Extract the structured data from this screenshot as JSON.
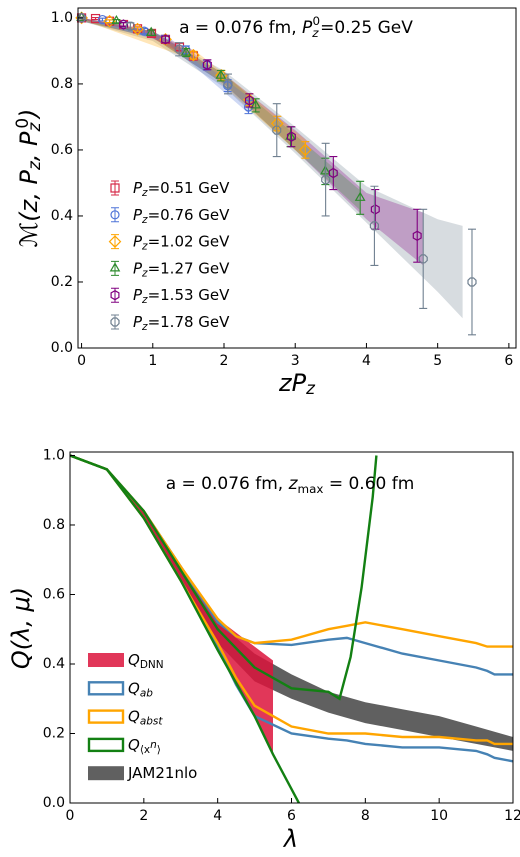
{
  "chart_data": [
    {
      "type": "errorbar",
      "annotation": [
        "a = 0.076 fm, ",
        "P",
        "z",
        "0",
        "=0.25 GeV"
      ],
      "x_label": [
        "zP",
        "z"
      ],
      "y_label": [
        "ℳ(z, P",
        "z",
        ", P",
        "z",
        "0",
        ")"
      ],
      "xlim": [
        -0.05,
        6.1
      ],
      "ylim": [
        0,
        1.03
      ],
      "xticks": [
        0,
        1,
        2,
        3,
        4,
        5,
        6
      ],
      "yticks": [
        {
          "value": 0,
          "label": "0.0"
        },
        {
          "value": 0.2,
          "label": "0.2"
        },
        {
          "value": 0.4,
          "label": "0.4"
        },
        {
          "value": 0.6,
          "label": "0.6"
        },
        {
          "value": 0.8,
          "label": "0.8"
        },
        {
          "value": 1.0,
          "label": "1.0"
        }
      ],
      "series": [
        {
          "name": [
            "P",
            "z",
            "=0.51 GeV"
          ],
          "color": "#d62746",
          "marker": "s",
          "x": [
            0,
            0.196,
            0.393,
            0.589,
            0.786,
            0.982,
            1.178,
            1.375,
            1.571
          ],
          "values": [
            1,
            0.998,
            0.99,
            0.98,
            0.967,
            0.953,
            0.935,
            0.912,
            0.885
          ],
          "errors": [
            0.002,
            0.003,
            0.004,
            0.005,
            0.006,
            0.008,
            0.009,
            0.011,
            0.013
          ],
          "band": {
            "x": [
              0,
              0.8,
              1.6
            ],
            "lower": [
              0.995,
              0.96,
              0.87
            ],
            "upper": [
              1,
              0.972,
              0.9
            ]
          }
        },
        {
          "name": [
            "P",
            "z",
            "=0.76 GeV"
          ],
          "color": "#4f74d8",
          "marker": "o",
          "x": [
            0,
            0.293,
            0.586,
            0.879,
            1.172,
            1.465,
            1.758,
            2.051,
            2.344
          ],
          "values": [
            1,
            0.995,
            0.98,
            0.96,
            0.937,
            0.903,
            0.857,
            0.795,
            0.73
          ],
          "errors": [
            0.002,
            0.004,
            0.006,
            0.008,
            0.01,
            0.012,
            0.015,
            0.018,
            0.02
          ],
          "band": {
            "x": [
              0,
              1.2,
              2.35
            ],
            "lower": [
              0.995,
              0.925,
              0.71
            ],
            "upper": [
              1,
              0.945,
              0.76
            ]
          }
        },
        {
          "name": [
            "P",
            "z",
            "=1.02 GeV"
          ],
          "color": "#ffa500",
          "marker": "D",
          "x": [
            0,
            0.393,
            0.786,
            1.178,
            1.571,
            1.964,
            2.357,
            2.749,
            3.142
          ],
          "values": [
            1,
            0.99,
            0.966,
            0.935,
            0.887,
            0.826,
            0.752,
            0.68,
            0.6
          ],
          "errors": [
            0.002,
            0.004,
            0.006,
            0.009,
            0.012,
            0.015,
            0.018,
            0.022,
            0.025
          ],
          "band": {
            "x": [
              0,
              1.6,
              3.15
            ],
            "lower": [
              0.995,
              0.87,
              0.57
            ],
            "upper": [
              1,
              0.9,
              0.63
            ]
          }
        },
        {
          "name": [
            "P",
            "z",
            "=1.27 GeV"
          ],
          "color": "#2e8b2e",
          "marker": "^",
          "x": [
            0,
            0.489,
            0.978,
            1.467,
            1.956,
            2.445,
            2.934,
            3.423,
            3.912
          ],
          "values": [
            1,
            0.99,
            0.955,
            0.895,
            0.825,
            0.735,
            0.64,
            0.535,
            0.455
          ],
          "errors": [
            0.002,
            0.005,
            0.008,
            0.012,
            0.016,
            0.02,
            0.03,
            0.04,
            0.05
          ],
          "band": {
            "x": [
              0,
              1,
              2,
              3,
              3.9
            ],
            "lower": [
              0.99,
              0.94,
              0.8,
              0.6,
              0.42
            ],
            "upper": [
              1,
              0.96,
              0.83,
              0.645,
              0.48
            ]
          }
        },
        {
          "name": [
            "P",
            "z",
            "=1.53 GeV"
          ],
          "color": "#800080",
          "marker": "h",
          "x": [
            0,
            0.589,
            1.178,
            1.767,
            2.356,
            2.946,
            3.535,
            4.124,
            4.713
          ],
          "values": [
            1,
            0.98,
            0.935,
            0.858,
            0.75,
            0.64,
            0.53,
            0.42,
            0.34
          ],
          "errors": [
            0.002,
            0.006,
            0.01,
            0.015,
            0.02,
            0.03,
            0.05,
            0.06,
            0.08
          ],
          "band": {
            "x": [
              0,
              1,
              2,
              3,
              4,
              4.8
            ],
            "lower": [
              0.99,
              0.94,
              0.8,
              0.6,
              0.39,
              0.25
            ],
            "upper": [
              1,
              0.96,
              0.83,
              0.66,
              0.47,
              0.41
            ]
          }
        },
        {
          "name": [
            "P",
            "z",
            "=1.78 GeV"
          ],
          "color": "#708090",
          "marker": "8",
          "x": [
            0,
            0.685,
            1.371,
            2.056,
            2.741,
            3.427,
            4.112,
            4.797,
            5.482
          ],
          "values": [
            1,
            0.975,
            0.905,
            0.8,
            0.66,
            0.51,
            0.37,
            0.27,
            0.2
          ],
          "errors": [
            0.002,
            0.01,
            0.02,
            0.03,
            0.08,
            0.11,
            0.12,
            0.15,
            0.16
          ],
          "band": {
            "x": [
              0,
              1,
              2,
              3,
              4,
              5,
              5.35
            ],
            "lower": [
              0.99,
              0.93,
              0.79,
              0.59,
              0.38,
              0.17,
              0.09
            ],
            "upper": [
              1,
              0.96,
              0.84,
              0.67,
              0.49,
              0.39,
              0.37
            ]
          }
        }
      ]
    },
    {
      "type": "band",
      "annotation": [
        "a = 0.076 fm, ",
        "z",
        "max",
        " = 0.60 fm"
      ],
      "x_label": [
        "λ"
      ],
      "y_label": [
        "Q(λ, μ)"
      ],
      "xlim": [
        0,
        12
      ],
      "ylim": [
        0,
        1.01
      ],
      "xticks": [
        0,
        2,
        4,
        6,
        8,
        10,
        12
      ],
      "yticks": [
        {
          "value": 0,
          "label": "0.0"
        },
        {
          "value": 0.2,
          "label": "0.2"
        },
        {
          "value": 0.4,
          "label": "0.4"
        },
        {
          "value": 0.6,
          "label": "0.6"
        },
        {
          "value": 0.8,
          "label": "0.8"
        },
        {
          "value": 1.0,
          "label": "1.0"
        }
      ],
      "series": [
        {
          "name": [
            "JAM21nlo"
          ],
          "color": "#444444",
          "style": "fill",
          "band": {
            "x": [
              0,
              1,
              2,
              3,
              4,
              5,
              6,
              7,
              8,
              9,
              10,
              11,
              12
            ],
            "lower": [
              1,
              0.96,
              0.82,
              0.64,
              0.46,
              0.35,
              0.3,
              0.26,
              0.23,
              0.21,
              0.19,
              0.17,
              0.15
            ],
            "upper": [
              1,
              0.96,
              0.84,
              0.67,
              0.52,
              0.43,
              0.37,
              0.32,
              0.29,
              0.27,
              0.25,
              0.22,
              0.19
            ]
          }
        },
        {
          "name": [
            "Q",
            "DNN"
          ],
          "color": "#dc143c",
          "style": "fill",
          "band": {
            "x": [
              0,
              1,
              2,
              3,
              4,
              5,
              5.5
            ],
            "lower": [
              1,
              0.96,
              0.82,
              0.64,
              0.44,
              0.25,
              0.14
            ],
            "upper": [
              1,
              0.96,
              0.84,
              0.68,
              0.53,
              0.45,
              0.41
            ]
          }
        },
        {
          "name": [
            "Q",
            "ab"
          ],
          "color": "#4682b4",
          "style": "outline",
          "lines": [
            {
              "x": [
                0,
                1,
                2,
                3,
                4,
                4.5,
                5,
                6,
                7,
                7.5,
                8,
                9,
                10,
                11,
                11.3,
                11.5,
                12
              ],
              "values": [
                1,
                0.96,
                0.84,
                0.68,
                0.52,
                0.48,
                0.46,
                0.455,
                0.47,
                0.475,
                0.46,
                0.43,
                0.41,
                0.39,
                0.38,
                0.37,
                0.37
              ]
            },
            {
              "x": [
                0,
                1,
                2,
                3,
                4,
                4.5,
                5,
                6,
                7,
                7.5,
                8,
                9,
                10,
                11,
                11.3,
                11.5,
                12
              ],
              "values": [
                1,
                0.96,
                0.82,
                0.64,
                0.45,
                0.34,
                0.25,
                0.2,
                0.185,
                0.18,
                0.17,
                0.16,
                0.16,
                0.15,
                0.14,
                0.13,
                0.12
              ]
            }
          ]
        },
        {
          "name": [
            "Q",
            "abst"
          ],
          "color": "#ffa500",
          "style": "outline",
          "lines": [
            {
              "x": [
                0,
                1,
                2,
                3,
                4,
                4.5,
                5,
                6,
                7,
                7.5,
                8,
                9,
                10,
                11,
                11.3,
                11.5,
                12
              ],
              "values": [
                1,
                0.96,
                0.84,
                0.68,
                0.53,
                0.48,
                0.46,
                0.47,
                0.5,
                0.51,
                0.52,
                0.5,
                0.48,
                0.46,
                0.45,
                0.45,
                0.45
              ]
            },
            {
              "x": [
                0,
                1,
                2,
                3,
                4,
                4.5,
                5,
                6,
                7,
                7.5,
                8,
                9,
                10,
                11,
                11.3,
                11.5,
                12
              ],
              "values": [
                1,
                0.96,
                0.82,
                0.64,
                0.46,
                0.36,
                0.28,
                0.22,
                0.2,
                0.2,
                0.2,
                0.19,
                0.19,
                0.18,
                0.18,
                0.17,
                0.17
              ]
            }
          ]
        },
        {
          "name": [
            "Q",
            "⟨x",
            "n",
            "⟩"
          ],
          "color": "#138013",
          "style": "outline",
          "lines": [
            {
              "x": [
                0,
                1,
                2,
                3,
                4,
                5,
                6,
                7,
                7.3,
                7.6,
                7.9,
                8.2,
                8.3
              ],
              "values": [
                1,
                0.96,
                0.84,
                0.67,
                0.5,
                0.39,
                0.33,
                0.32,
                0.3,
                0.42,
                0.62,
                0.88,
                1.0
              ]
            },
            {
              "x": [
                0,
                1,
                2,
                3,
                4,
                5,
                5.5,
                6,
                6.2
              ],
              "values": [
                1,
                0.96,
                0.82,
                0.64,
                0.44,
                0.25,
                0.14,
                0.04,
                0
              ]
            }
          ]
        }
      ]
    }
  ]
}
